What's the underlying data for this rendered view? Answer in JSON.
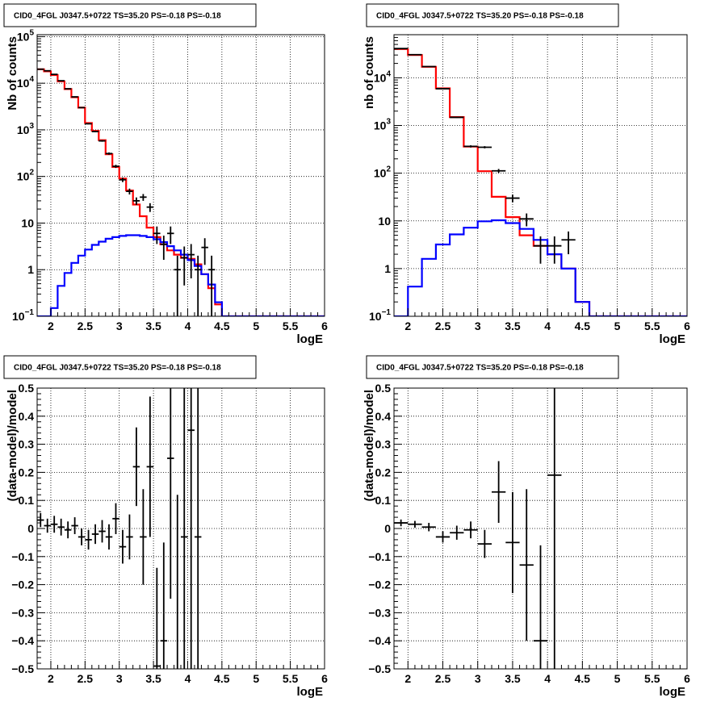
{
  "chart_data": [
    {
      "type": "histogram",
      "title": "CID0_4FGL J0347.5+0722 TS=35.20 PS=-0.18 PS=-0.18",
      "xlabel": "logE",
      "ylabel": "Nb of counts",
      "xlim": [
        1.8,
        6.0
      ],
      "ylim": [
        0.1,
        110000
      ],
      "yscale": "log",
      "grid": true,
      "xticks": [
        "2",
        "2.5",
        "3",
        "3.5",
        "4",
        "4.5",
        "5",
        "5.5",
        "6"
      ],
      "yticks": [
        {
          "v": 0.1,
          "b": "10",
          "e": "−1"
        },
        {
          "v": 1,
          "t": "1"
        },
        {
          "v": 10,
          "t": "10"
        },
        {
          "v": 100,
          "b": "10",
          "e": "2"
        },
        {
          "v": 1000,
          "b": "10",
          "e": "3"
        },
        {
          "v": 10000,
          "b": "10",
          "e": "4"
        },
        {
          "v": 100000,
          "b": "10",
          "e": "5"
        }
      ],
      "bin_edges": [
        1.8,
        1.9,
        2.0,
        2.1,
        2.2,
        2.3,
        2.4,
        2.5,
        2.6,
        2.7,
        2.8,
        2.9,
        3.0,
        3.1,
        3.2,
        3.3,
        3.4,
        3.5,
        3.6,
        3.7,
        3.8,
        3.9,
        4.0,
        4.1,
        4.2,
        4.3,
        4.4,
        4.5,
        4.6,
        4.7,
        4.8,
        4.9,
        5.0,
        5.1,
        5.2,
        5.3,
        5.4,
        5.5,
        5.6,
        5.7,
        5.8,
        5.9,
        6.0
      ],
      "series": [
        {
          "kind": "step",
          "color": "#ff0000",
          "values": [
            20000,
            18000,
            15000,
            11000,
            7500,
            5000,
            3000,
            1400,
            950,
            600,
            300,
            160,
            90,
            50,
            25,
            14,
            8,
            5,
            3.5,
            2.6,
            2.1,
            1.8,
            1.7,
            1.3,
            0.8,
            0.4,
            0.18,
            0.1,
            0.1,
            0.1,
            0.1,
            0.1,
            0.1,
            0.1,
            0.1,
            0.1,
            0.1,
            0.1,
            0.1,
            0.1,
            0.1,
            0.1
          ]
        },
        {
          "kind": "step",
          "color": "#0000ff",
          "values": [
            0.1,
            0.1,
            0.15,
            0.45,
            0.85,
            1.4,
            2.0,
            2.7,
            3.4,
            4.0,
            4.6,
            5.0,
            5.3,
            5.5,
            5.5,
            5.3,
            5.0,
            4.5,
            3.9,
            3.2,
            2.6,
            2.1,
            1.6,
            1.2,
            0.8,
            0.48,
            0.2,
            0.1,
            0.1,
            0.1,
            0.1,
            0.1,
            0.1,
            0.1,
            0.1,
            0.1,
            0.1,
            0.1,
            0.1,
            0.1,
            0.1,
            0.1
          ]
        },
        {
          "kind": "points",
          "color": "#000000",
          "x": [
            1.85,
            1.95,
            2.05,
            2.15,
            2.25,
            2.35,
            2.45,
            2.55,
            2.65,
            2.75,
            2.85,
            2.95,
            3.05,
            3.15,
            3.25,
            3.35,
            3.45,
            3.55,
            3.65,
            3.75,
            3.85,
            3.95,
            4.05,
            4.15,
            4.25,
            4.35
          ],
          "y": [
            20000,
            18500,
            15500,
            11300,
            7600,
            5100,
            3000,
            1350,
            920,
            580,
            310,
            165,
            85,
            48,
            30,
            36,
            22,
            6,
            3.5,
            6,
            1,
            1.8,
            2.1,
            1,
            3,
            1
          ]
        }
      ]
    },
    {
      "type": "histogram",
      "title": "CID0_4FGL J0347.5+0722 TS=35.20 PS=-0.18 PS=-0.18",
      "xlabel": "logE",
      "ylabel": "nb of counts",
      "xlim": [
        1.8,
        6.0
      ],
      "ylim": [
        0.1,
        80000
      ],
      "yscale": "log",
      "grid": true,
      "xticks": [
        "2",
        "2.5",
        "3",
        "3.5",
        "4",
        "4.5",
        "5",
        "5.5",
        "6"
      ],
      "yticks": [
        {
          "v": 0.1,
          "b": "10",
          "e": "−1"
        },
        {
          "v": 1,
          "t": "1"
        },
        {
          "v": 10,
          "t": "10"
        },
        {
          "v": 100,
          "b": "10",
          "e": "2"
        },
        {
          "v": 1000,
          "b": "10",
          "e": "3"
        },
        {
          "v": 10000,
          "b": "10",
          "e": "4"
        }
      ],
      "bin_edges": [
        1.8,
        2.0,
        2.2,
        2.4,
        2.6,
        2.8,
        3.0,
        3.2,
        3.4,
        3.6,
        3.8,
        4.0,
        4.2,
        4.4,
        4.6,
        4.8,
        5.0,
        5.2,
        5.4,
        5.6,
        5.8,
        6.0
      ],
      "series": [
        {
          "kind": "step",
          "color": "#ff0000",
          "values": [
            40000,
            30000,
            17000,
            6000,
            1500,
            360,
            110,
            32,
            12,
            5,
            3,
            2,
            1,
            0.2,
            0.1,
            0.1,
            0.1,
            0.1,
            0.1,
            0.1,
            0.1
          ]
        },
        {
          "kind": "step",
          "color": "#0000ff",
          "values": [
            0.1,
            0.42,
            1.6,
            3.2,
            5.2,
            7.2,
            9.8,
            10.3,
            9.0,
            6.8,
            4.0,
            2.0,
            1.0,
            0.2,
            0.1,
            0.1,
            0.1,
            0.1,
            0.1,
            0.1,
            0.1
          ]
        },
        {
          "kind": "points",
          "color": "#000000",
          "x": [
            1.9,
            2.1,
            2.3,
            2.5,
            2.7,
            2.9,
            3.1,
            3.3,
            3.5,
            3.7,
            3.9,
            4.1,
            4.3
          ],
          "y": [
            41000,
            30500,
            17200,
            5900,
            1480,
            365,
            350,
            112,
            30,
            11,
            3,
            3,
            4
          ]
        }
      ]
    },
    {
      "type": "scatter",
      "title": "CID0_4FGL J0347.5+0722 TS=35.20 PS=-0.18 PS=-0.18",
      "xlabel": "logE",
      "ylabel": "(data-model)/model",
      "xlim": [
        1.8,
        6.0
      ],
      "ylim": [
        -0.5,
        0.5
      ],
      "grid": true,
      "xticks": [
        "2",
        "2.5",
        "3",
        "3.5",
        "4",
        "4.5",
        "5",
        "5.5",
        "6"
      ],
      "yticks": [
        "−0.5",
        "−0.4",
        "−0.3",
        "−0.2",
        "−0.1",
        "0",
        "0.1",
        "0.2",
        "0.3",
        "0.4",
        "0.5"
      ],
      "series": [
        {
          "kind": "errorbars",
          "color": "#000000",
          "bin_width": 0.1,
          "x": [
            1.85,
            1.95,
            2.05,
            2.15,
            2.25,
            2.35,
            2.45,
            2.55,
            2.65,
            2.75,
            2.85,
            2.95,
            3.05,
            3.15,
            3.25,
            3.35,
            3.45,
            3.55,
            3.65,
            3.75,
            3.85,
            3.95,
            4.05,
            4.15
          ],
          "y": [
            0.03,
            0.01,
            0.015,
            0.005,
            -0.005,
            0.01,
            -0.03,
            -0.04,
            -0.02,
            -0.01,
            -0.03,
            0.035,
            -0.065,
            -0.03,
            0.22,
            -0.03,
            0.22,
            -0.49,
            -0.4,
            0.25,
            -0.88,
            -0.03,
            0.35,
            -0.03
          ],
          "err": [
            0.025,
            0.025,
            0.03,
            0.03,
            0.03,
            0.03,
            0.03,
            0.035,
            0.035,
            0.04,
            0.045,
            0.055,
            0.06,
            0.08,
            0.14,
            0.17,
            0.25,
            0.35,
            0.35,
            0.5,
            1.0,
            1.0,
            1.0,
            1.0
          ]
        }
      ]
    },
    {
      "type": "scatter",
      "title": "CID0_4FGL J0347.5+0722 TS=35.20 PS=-0.18 PS=-0.18",
      "xlabel": "logE",
      "ylabel": "(data-model)/model",
      "xlim": [
        1.8,
        6.0
      ],
      "ylim": [
        -0.5,
        0.5
      ],
      "grid": true,
      "xticks": [
        "2",
        "2.5",
        "3",
        "3.5",
        "4",
        "4.5",
        "5",
        "5.5",
        "6"
      ],
      "yticks": [
        "−0.5",
        "−0.4",
        "−0.3",
        "−0.2",
        "−0.1",
        "0",
        "0.1",
        "0.2",
        "0.3",
        "0.4",
        "0.5"
      ],
      "series": [
        {
          "kind": "errorbars",
          "color": "#000000",
          "bin_width": 0.2,
          "x": [
            1.9,
            2.1,
            2.3,
            2.5,
            2.7,
            2.9,
            3.1,
            3.3,
            3.5,
            3.7,
            3.9,
            4.1
          ],
          "y": [
            0.02,
            0.015,
            0.005,
            -0.03,
            -0.015,
            -0.005,
            -0.055,
            0.13,
            -0.05,
            -0.13,
            -0.4,
            0.19
          ],
          "err": [
            0.012,
            0.012,
            0.015,
            0.02,
            0.025,
            0.03,
            0.05,
            0.11,
            0.18,
            0.27,
            0.34,
            1.0
          ]
        }
      ]
    }
  ]
}
